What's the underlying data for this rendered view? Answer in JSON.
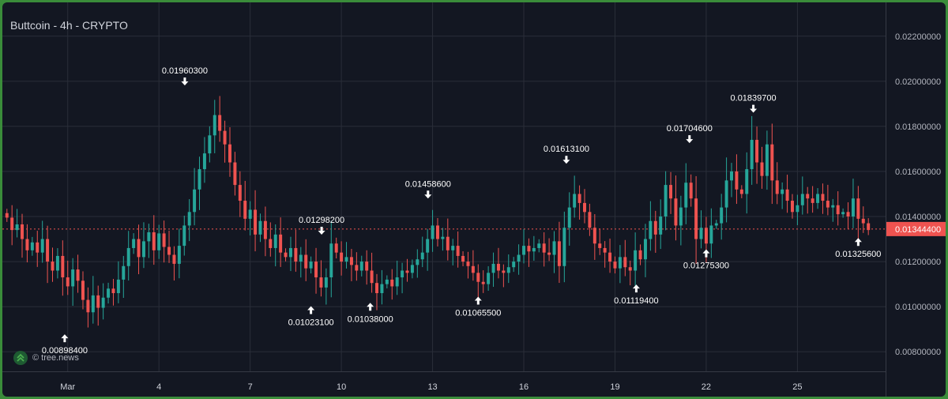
{
  "header": {
    "title": "Buttcoin - 4h - CRYPTO"
  },
  "watermark": {
    "icon": "tree-news-logo-icon",
    "text": "© tree.news"
  },
  "colors": {
    "up": "#26a69a",
    "down": "#ef5350",
    "background": "#131722",
    "grid": "#2a2e39",
    "text": "#d1d4dc",
    "price_line": "#ef5350"
  },
  "chart_data": {
    "type": "candlestick",
    "title": "Buttcoin - 4h - CRYPTO",
    "interval": "4h",
    "grid": true,
    "ylim": [
      0.00713,
      0.0235
    ],
    "x_range_days": [
      -1.15,
      27.9
    ],
    "x_ticks": [
      {
        "label": "Mar",
        "day": 1
      },
      {
        "label": "4",
        "day": 4
      },
      {
        "label": "7",
        "day": 7
      },
      {
        "label": "10",
        "day": 10
      },
      {
        "label": "13",
        "day": 13
      },
      {
        "label": "16",
        "day": 16
      },
      {
        "label": "19",
        "day": 19
      },
      {
        "label": "22",
        "day": 22
      },
      {
        "label": "25",
        "day": 25
      }
    ],
    "y_ticks": [
      "0.00800000",
      "0.01000000",
      "0.01200000",
      "0.01400000",
      "0.01600000",
      "0.01800000",
      "0.02000000",
      "0.02200000"
    ],
    "y_tick_values": [
      0.008,
      0.01,
      0.012,
      0.014,
      0.016,
      0.018,
      0.02,
      0.022
    ],
    "current_price": {
      "label": "0.01344400",
      "value": 0.013444
    },
    "annotations": [
      {
        "type": "low",
        "label": "0.00898400",
        "value": 0.008984,
        "day": 0.9
      },
      {
        "type": "high",
        "label": "0.01960300",
        "value": 0.019603,
        "day": 4.85
      },
      {
        "type": "high",
        "label": "0.01298200",
        "value": 0.012982,
        "day": 9.35
      },
      {
        "type": "low",
        "label": "0.01023100",
        "value": 0.010231,
        "day": 9.0
      },
      {
        "type": "low",
        "label": "0.01038000",
        "value": 0.01038,
        "day": 10.95
      },
      {
        "type": "high",
        "label": "0.01458600",
        "value": 0.014586,
        "day": 12.85
      },
      {
        "type": "low",
        "label": "0.01065500",
        "value": 0.010655,
        "day": 14.5
      },
      {
        "type": "high",
        "label": "0.01613100",
        "value": 0.016131,
        "day": 17.4
      },
      {
        "type": "low",
        "label": "0.01119400",
        "value": 0.011194,
        "day": 19.7
      },
      {
        "type": "high",
        "label": "0.01704600",
        "value": 0.017046,
        "day": 21.45
      },
      {
        "type": "low",
        "label": "0.01275300",
        "value": 0.012753,
        "day": 22.0
      },
      {
        "type": "high",
        "label": "0.01839700",
        "value": 0.018397,
        "day": 23.55
      },
      {
        "type": "low",
        "label": "0.01325600",
        "value": 0.013256,
        "day": 27.0
      }
    ],
    "closes": [
      0.01395,
      0.0134,
      0.01365,
      0.013,
      0.0125,
      0.01285,
      0.0124,
      0.013,
      0.012,
      0.0116,
      0.01225,
      0.0113,
      0.0109,
      0.01165,
      0.01115,
      0.0103,
      0.00975,
      0.0105,
      0.00995,
      0.0104,
      0.0108,
      0.0106,
      0.0112,
      0.0118,
      0.0126,
      0.013,
      0.0122,
      0.0129,
      0.0133,
      0.0125,
      0.01325,
      0.01265,
      0.0123,
      0.0119,
      0.0127,
      0.0136,
      0.0142,
      0.0152,
      0.0161,
      0.0168,
      0.0176,
      0.0185,
      0.0178,
      0.0172,
      0.0164,
      0.0154,
      0.0147,
      0.0139,
      0.0143,
      0.0132,
      0.0138,
      0.013,
      0.0126,
      0.0132,
      0.0124,
      0.0122,
      0.0126,
      0.012,
      0.0123,
      0.0117,
      0.012,
      0.0113,
      0.01085,
      0.0113,
      0.0128,
      0.0124,
      0.012,
      0.0122,
      0.01185,
      0.0116,
      0.012,
      0.0116,
      0.01105,
      0.0106,
      0.011,
      0.0112,
      0.0109,
      0.0113,
      0.0116,
      0.0115,
      0.01185,
      0.0121,
      0.0124,
      0.013,
      0.0136,
      0.013,
      0.0131,
      0.0125,
      0.0127,
      0.01225,
      0.012,
      0.0118,
      0.0115,
      0.0111,
      0.011,
      0.0115,
      0.0119,
      0.0116,
      0.0115,
      0.01175,
      0.012,
      0.0123,
      0.0127,
      0.01245,
      0.0126,
      0.0128,
      0.0124,
      0.0123,
      0.0129,
      0.0118,
      0.0135,
      0.0144,
      0.015,
      0.0146,
      0.0142,
      0.0135,
      0.0128,
      0.0126,
      0.0124,
      0.012,
      0.0117,
      0.0122,
      0.01175,
      0.0116,
      0.0125,
      0.0121,
      0.013,
      0.0138,
      0.0132,
      0.014,
      0.0154,
      0.0148,
      0.0136,
      0.0144,
      0.0155,
      0.0148,
      0.013,
      0.0135,
      0.0128,
      0.0136,
      0.0137,
      0.0144,
      0.0156,
      0.016,
      0.0152,
      0.015,
      0.0161,
      0.0174,
      0.0164,
      0.0158,
      0.0172,
      0.0156,
      0.015,
      0.0152,
      0.0147,
      0.0142,
      0.0145,
      0.015,
      0.0148,
      0.0146,
      0.015,
      0.0147,
      0.0144,
      0.0145,
      0.0141,
      0.0142,
      0.014,
      0.0148,
      0.0139,
      0.0137,
      0.0134
    ]
  }
}
